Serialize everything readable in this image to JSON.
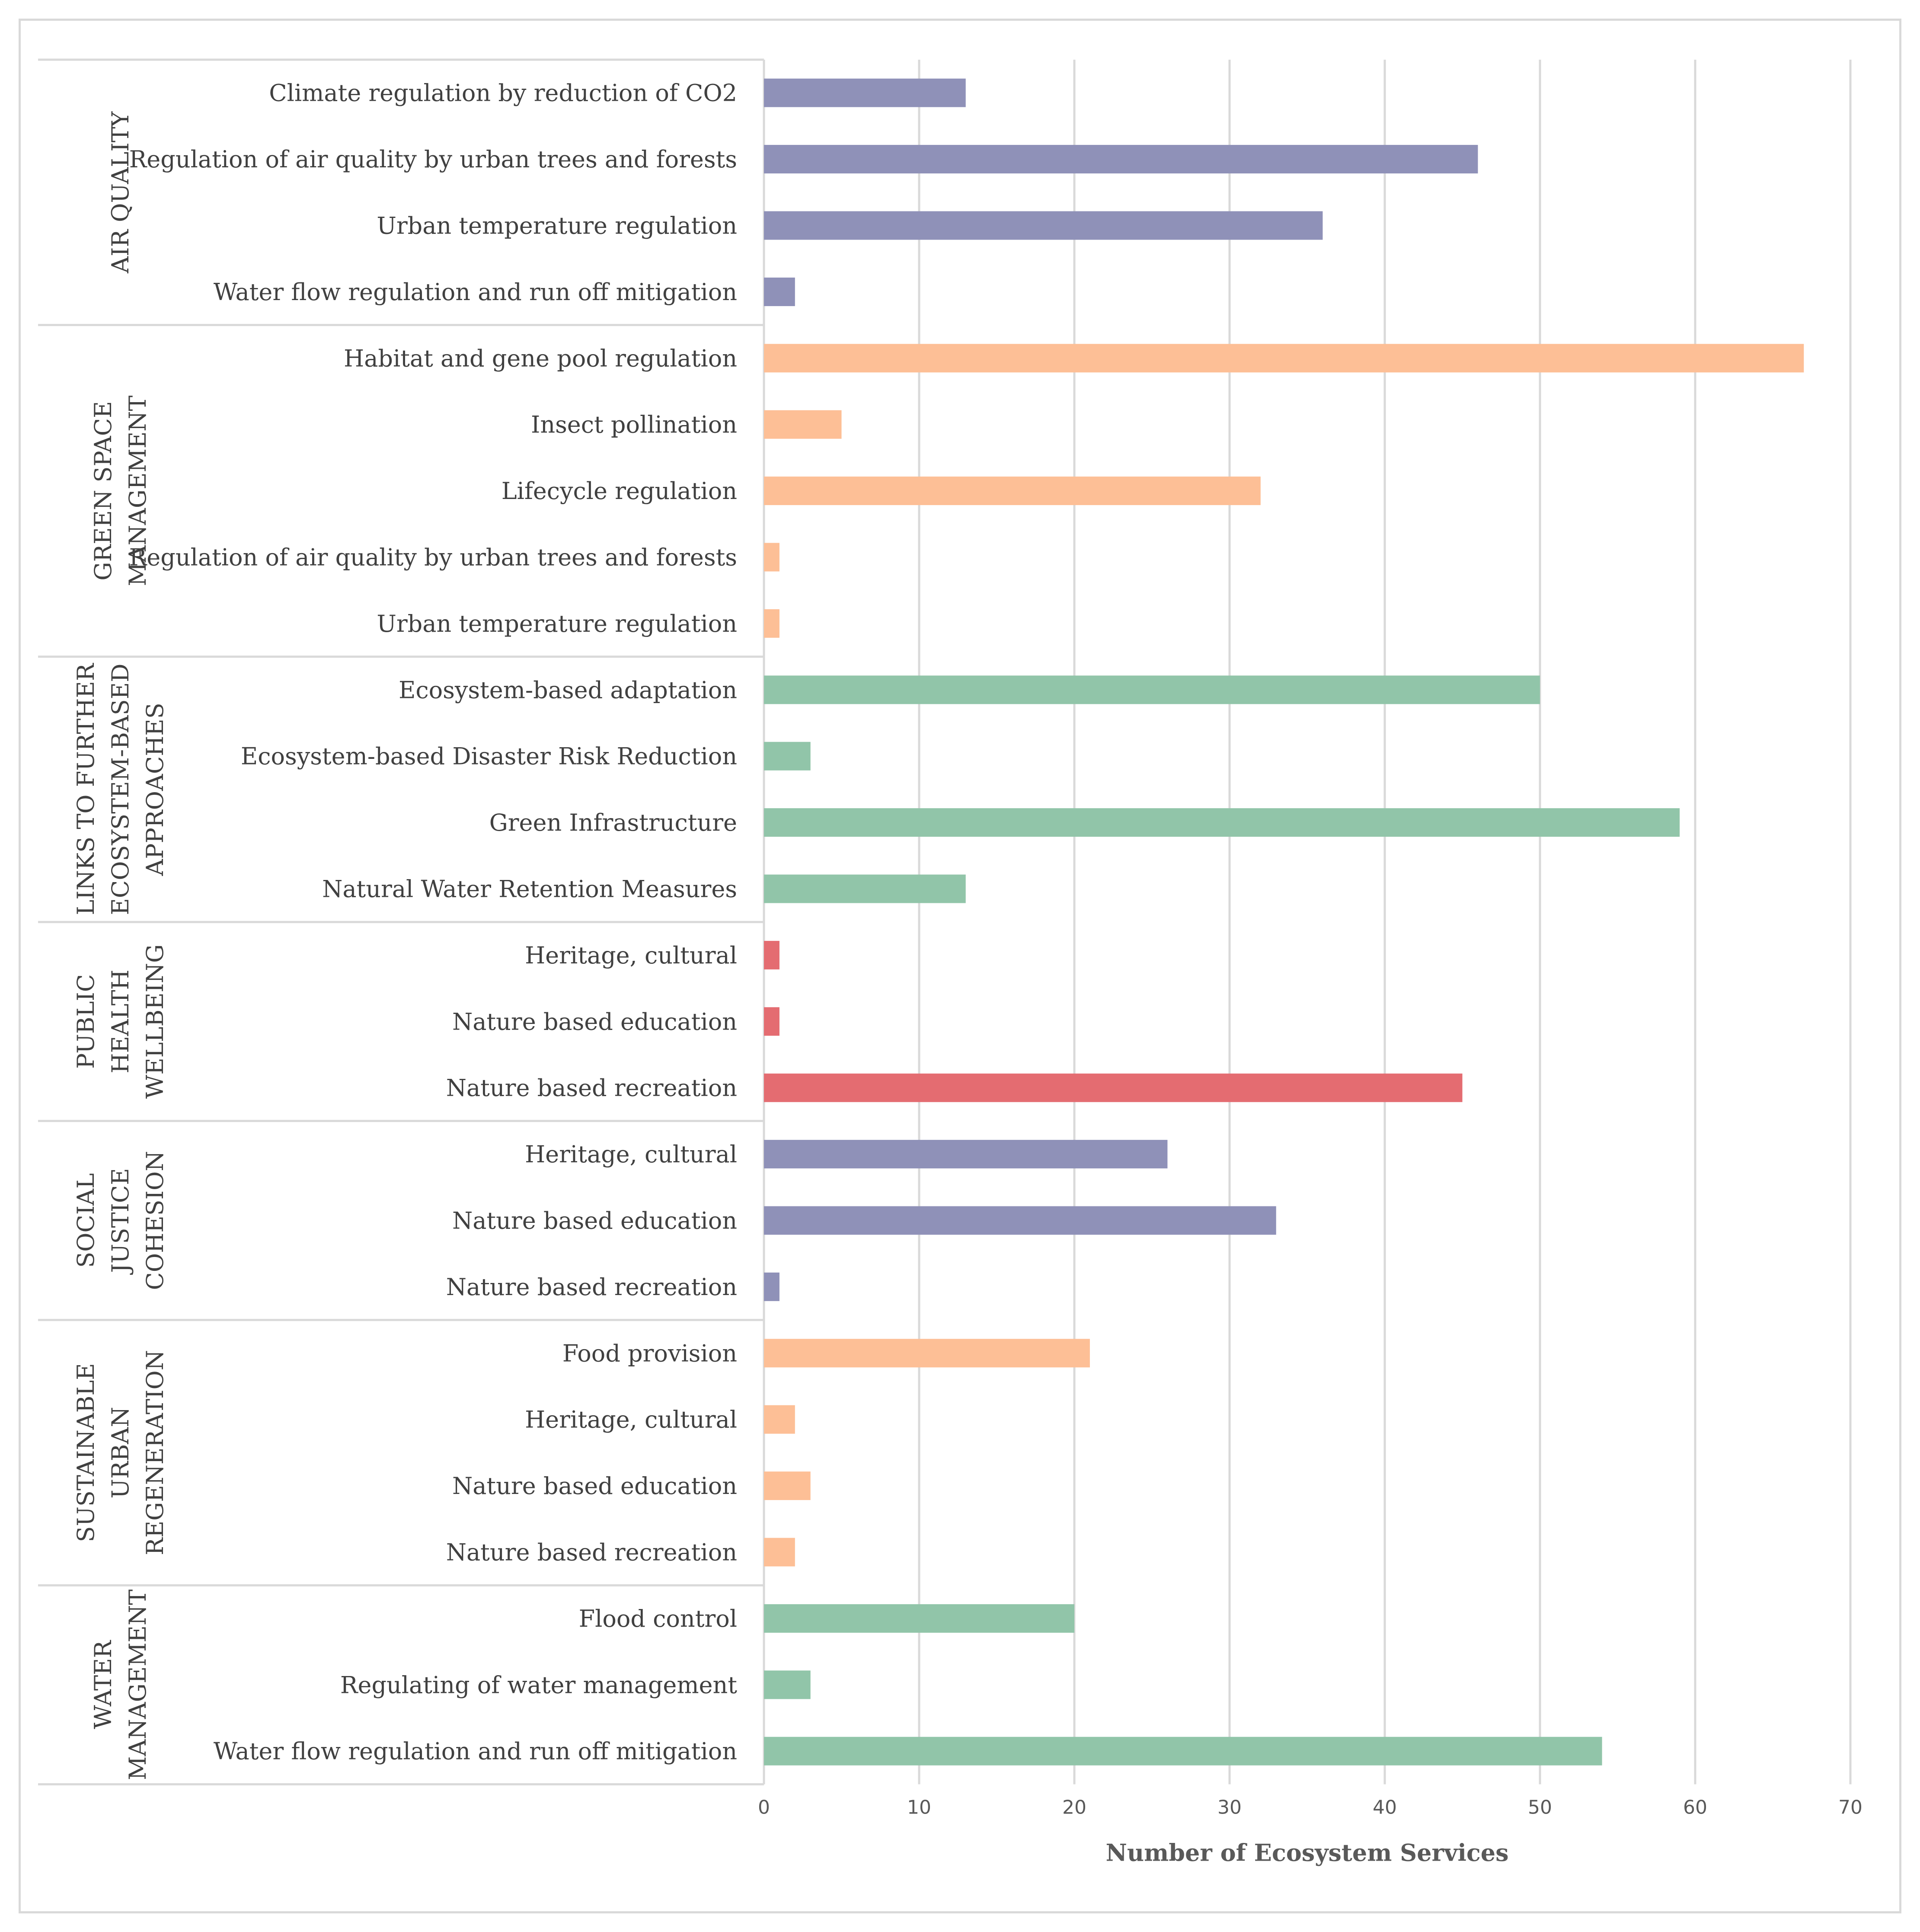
{
  "chart_data": {
    "type": "bar",
    "orientation": "horizontal",
    "title": "",
    "xlabel": "Number of Ecosystem Services",
    "ylabel": "",
    "xlim": [
      0,
      70
    ],
    "xticks": [
      0,
      10,
      20,
      30,
      40,
      50,
      60,
      70
    ],
    "grid": "vertical",
    "colors": {
      "purple": "#8f91b8",
      "orange": "#fdbf96",
      "green": "#91c5a9",
      "red": "#e46c71"
    },
    "groups": [
      {
        "label_lines": [
          "AIR QUALITY"
        ],
        "color": "#8f91b8",
        "items": [
          {
            "label": "Climate regulation by reduction of CO2",
            "value": 13
          },
          {
            "label": "Regulation of air quality by urban trees and forests",
            "value": 46
          },
          {
            "label": "Urban temperature regulation",
            "value": 36
          },
          {
            "label": "Water flow regulation and run off mitigation",
            "value": 2
          }
        ]
      },
      {
        "label_lines": [
          "GREEN SPACE",
          "MANAGEMENT"
        ],
        "color": "#fdbf96",
        "items": [
          {
            "label": "Habitat and gene pool regulation",
            "value": 67
          },
          {
            "label": "Insect pollination",
            "value": 5
          },
          {
            "label": "Lifecycle regulation",
            "value": 32
          },
          {
            "label": "Regulation of air quality by urban trees and forests",
            "value": 1
          },
          {
            "label": "Urban temperature regulation",
            "value": 1
          }
        ]
      },
      {
        "label_lines": [
          "LINKS TO FURTHER",
          "ECOSYSTEM-BASED",
          "APPROACHES"
        ],
        "color": "#91c5a9",
        "items": [
          {
            "label": "Ecosystem-based adaptation",
            "value": 50
          },
          {
            "label": "Ecosystem-based Disaster Risk Reduction",
            "value": 3
          },
          {
            "label": "Green Infrastructure",
            "value": 59
          },
          {
            "label": "Natural Water Retention Measures",
            "value": 13
          }
        ]
      },
      {
        "label_lines": [
          "PUBLIC",
          "HEALTH",
          "WELLBEING"
        ],
        "color": "#e46c71",
        "items": [
          {
            "label": "Heritage, cultural",
            "value": 1
          },
          {
            "label": "Nature based education",
            "value": 1
          },
          {
            "label": "Nature based recreation",
            "value": 45
          }
        ]
      },
      {
        "label_lines": [
          "SOCIAL",
          "JUSTICE",
          "COHESION"
        ],
        "color": "#8f91b8",
        "items": [
          {
            "label": "Heritage, cultural",
            "value": 26
          },
          {
            "label": "Nature based education",
            "value": 33
          },
          {
            "label": "Nature based recreation",
            "value": 1
          }
        ]
      },
      {
        "label_lines": [
          "SUSTAINABLE",
          "URBAN",
          "REGENERATION"
        ],
        "color": "#fdbf96",
        "items": [
          {
            "label": "Food provision",
            "value": 21
          },
          {
            "label": "Heritage, cultural",
            "value": 2
          },
          {
            "label": "Nature based education",
            "value": 3
          },
          {
            "label": "Nature based recreation",
            "value": 2
          }
        ]
      },
      {
        "label_lines": [
          "WATER",
          "MANAGEMENT"
        ],
        "color": "#91c5a9",
        "items": [
          {
            "label": "Flood control",
            "value": 20
          },
          {
            "label": "Regulating of water management",
            "value": 3
          },
          {
            "label": "Water flow regulation and run off mitigation",
            "value": 54
          }
        ]
      }
    ]
  }
}
